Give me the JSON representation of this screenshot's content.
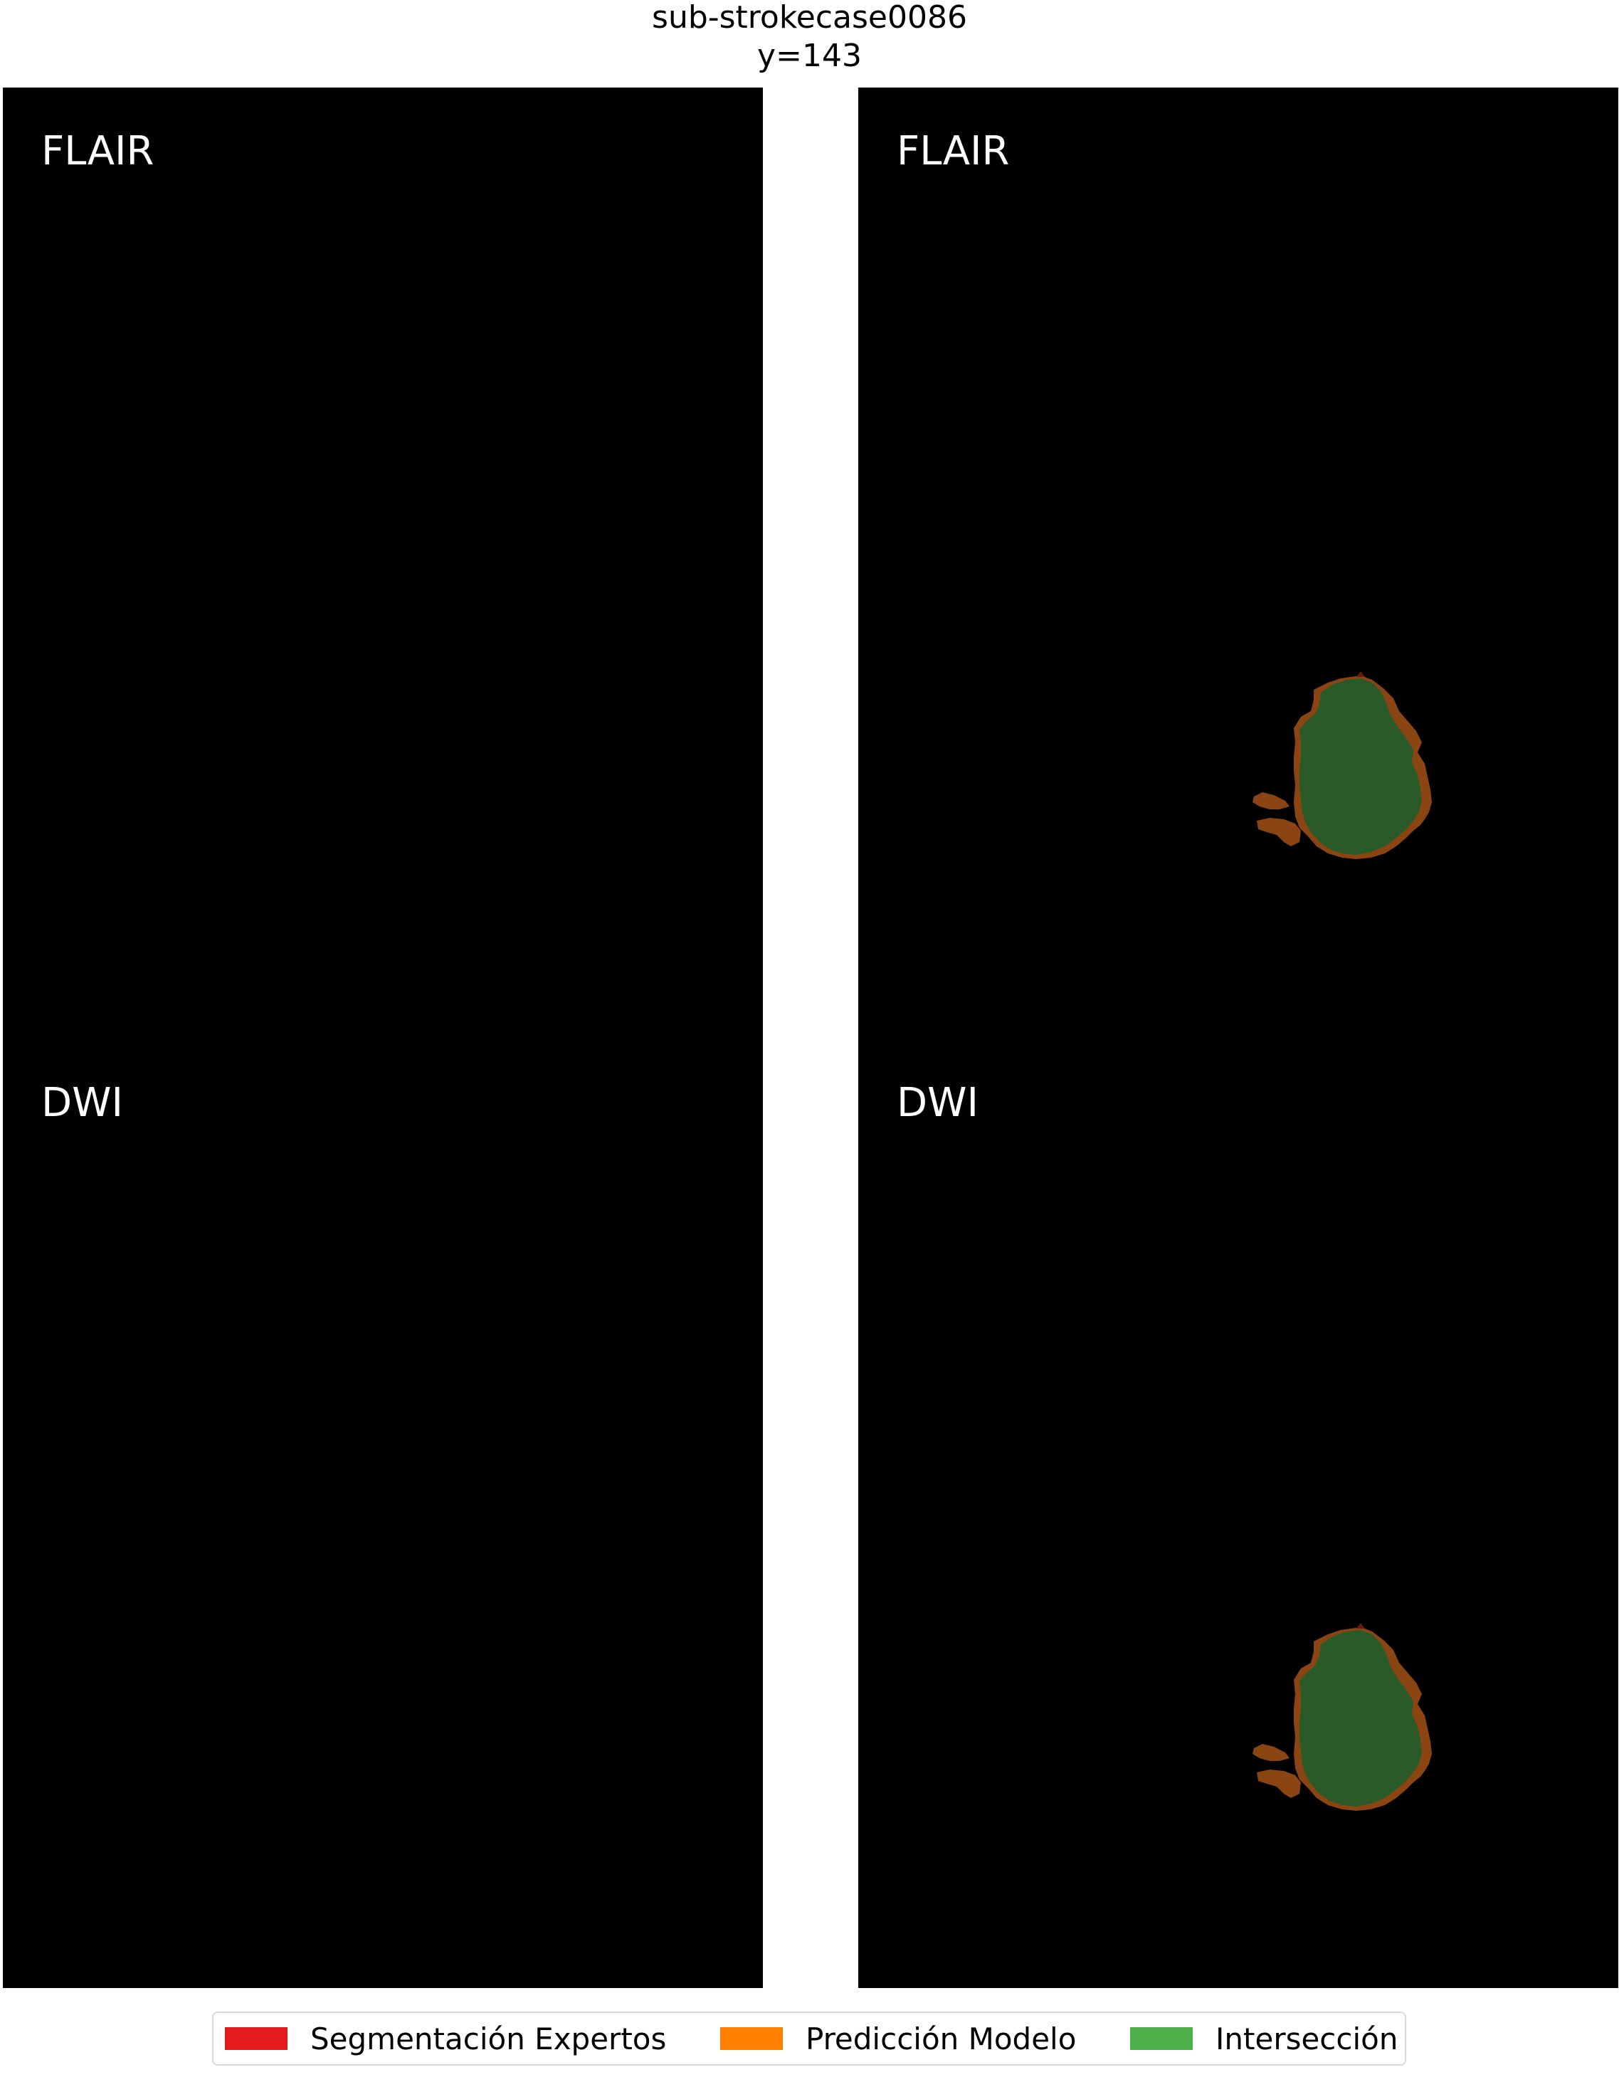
{
  "figure": {
    "title": "sub-strokecase0086",
    "subtitle": "y=143"
  },
  "panels": {
    "left": {
      "top_label": "FLAIR",
      "bottom_label": "DWI"
    },
    "right": {
      "top_label": "FLAIR",
      "bottom_label": "DWI"
    }
  },
  "legend": {
    "items": [
      {
        "label": "Segmentación Expertos",
        "color": "#e41a1c"
      },
      {
        "label": "Predicción Modelo",
        "color": "#ff7f00"
      },
      {
        "label": "Intersección",
        "color": "#4daf4a"
      }
    ]
  },
  "colors": {
    "background": "#000000",
    "overlay_intersection": "#2a5a28",
    "overlay_prediction": "#8b4513",
    "overlay_expert_edge": "#6b1a0a"
  }
}
